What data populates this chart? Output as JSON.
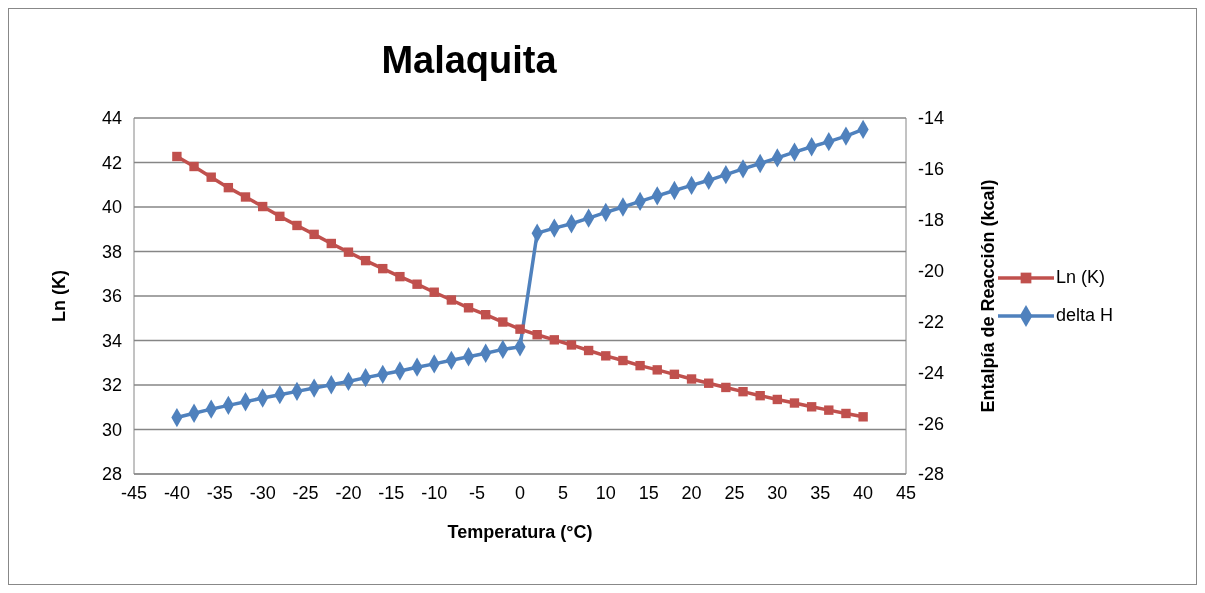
{
  "chart_data": {
    "type": "line",
    "title": "Malaquita",
    "xlabel": "Temperatura (°C)",
    "ylabel": "Ln (K)",
    "y2label": "Entalpía de Reacción (kcal)",
    "x": [
      -40,
      -38,
      -36,
      -34,
      -32,
      -30,
      -28,
      -26,
      -24,
      -22,
      -20,
      -18,
      -16,
      -14,
      -12,
      -10,
      -8,
      -6,
      -4,
      -2,
      0,
      2,
      4,
      6,
      8,
      10,
      12,
      14,
      16,
      18,
      20,
      22,
      24,
      26,
      28,
      30,
      32,
      34,
      36,
      38,
      40
    ],
    "series": [
      {
        "name": "Ln (K)",
        "color": "#c0504d",
        "marker": "square",
        "values": [
          42.27,
          41.82,
          41.34,
          40.87,
          40.45,
          40.02,
          39.58,
          39.17,
          38.77,
          38.36,
          37.97,
          37.59,
          37.23,
          36.87,
          36.53,
          36.17,
          35.82,
          35.47,
          35.16,
          34.83,
          34.51,
          34.26,
          34.03,
          33.8,
          33.55,
          33.31,
          33.1,
          32.87,
          32.68,
          32.48,
          32.27,
          32.08,
          31.89,
          31.7,
          31.52,
          31.35,
          31.19,
          31.02,
          30.87,
          30.72,
          30.57
        ]
      },
      {
        "name": "delta H",
        "color": "#4f81bd",
        "marker": "diamond",
        "axis": "y2",
        "values": [
          -25.78,
          -25.61,
          -25.45,
          -25.3,
          -25.16,
          -25.01,
          -24.88,
          -24.75,
          -24.62,
          -24.49,
          -24.36,
          -24.21,
          -24.08,
          -23.95,
          -23.8,
          -23.67,
          -23.53,
          -23.39,
          -23.25,
          -23.1,
          -23.0,
          -18.53,
          -18.33,
          -18.16,
          -17.94,
          -17.71,
          -17.5,
          -17.28,
          -17.06,
          -16.85,
          -16.65,
          -16.45,
          -16.23,
          -16.0,
          -15.79,
          -15.57,
          -15.34,
          -15.13,
          -14.93,
          -14.71,
          -14.45
        ]
      }
    ],
    "xlim": [
      -45,
      45
    ],
    "xticks": [
      -45,
      -40,
      -35,
      -30,
      -25,
      -20,
      -15,
      -10,
      -5,
      0,
      5,
      10,
      15,
      20,
      25,
      30,
      35,
      40,
      45
    ],
    "ylim": [
      28,
      44
    ],
    "yticks": [
      28,
      30,
      32,
      34,
      36,
      38,
      40,
      42,
      44
    ],
    "y2lim": [
      -28,
      -14
    ],
    "y2ticks": [
      -28,
      -26,
      -24,
      -22,
      -20,
      -18,
      -16,
      -14
    ],
    "grid": "y",
    "legend": "right",
    "line_style": "solid"
  }
}
